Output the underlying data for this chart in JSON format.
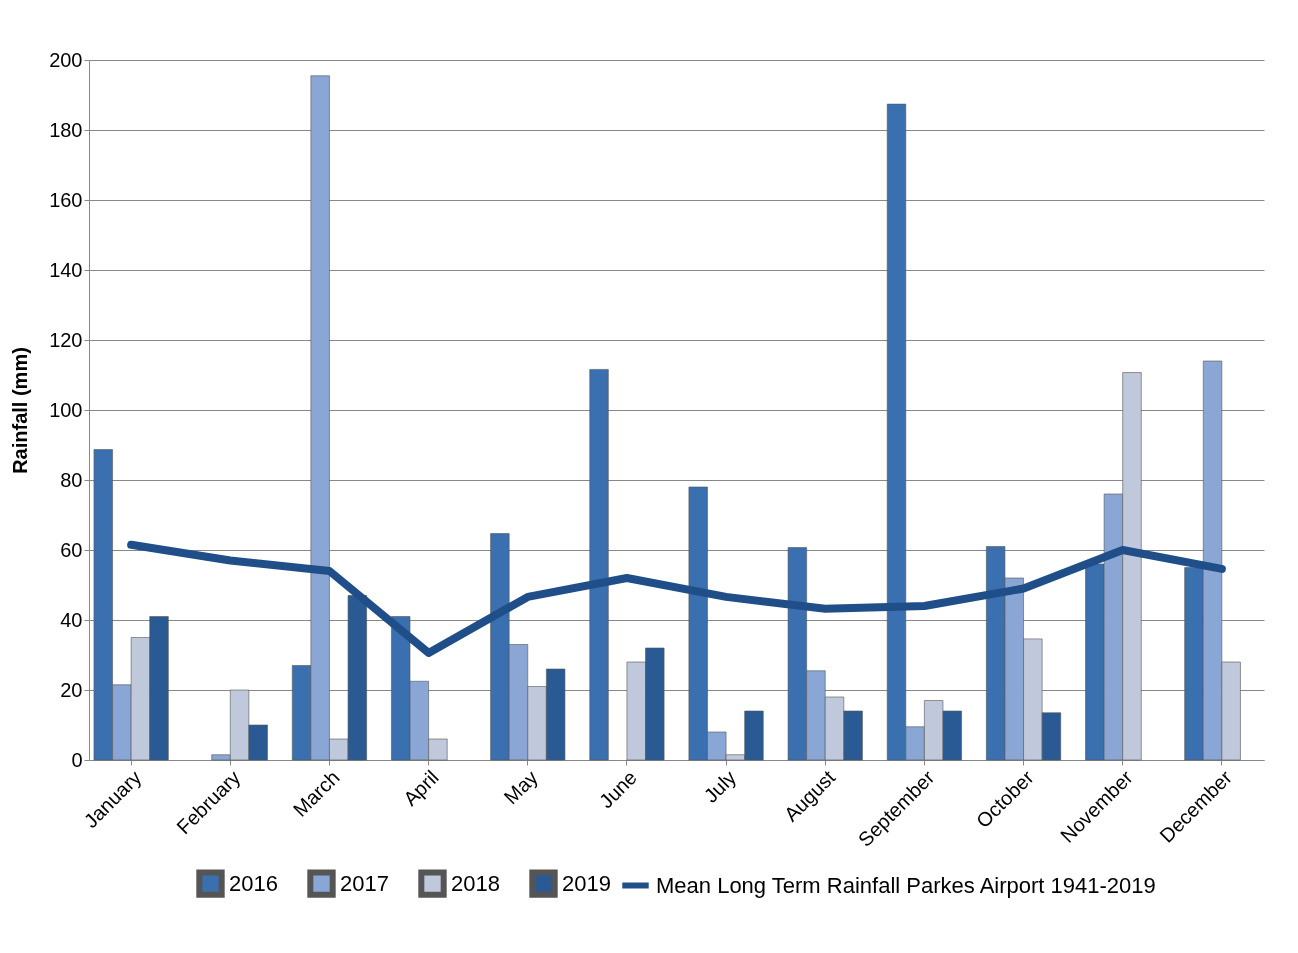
{
  "chart_data": {
    "type": "bar",
    "ylabel": "Rainfall (mm)",
    "categories": [
      "January",
      "February",
      "March",
      "April",
      "May",
      "June",
      "July",
      "August",
      "September",
      "October",
      "November",
      "December"
    ],
    "series": [
      {
        "name": "2016",
        "color": "#3a6fb0",
        "values": [
          88.7,
          null,
          27,
          41,
          64.7,
          111.6,
          78,
          60.7,
          187.4,
          61,
          56,
          55
        ]
      },
      {
        "name": "2017",
        "color": "#8aa6d4",
        "values": [
          21.5,
          1.5,
          195.5,
          22.5,
          33,
          null,
          8,
          25.5,
          9.5,
          52,
          76,
          114
        ]
      },
      {
        "name": "2018",
        "color": "#c0c8dc",
        "values": [
          35,
          20,
          6,
          6,
          21,
          28,
          1.5,
          18,
          17,
          34.6,
          110.7,
          28
        ]
      },
      {
        "name": "2019",
        "color": "#2a5a94",
        "values": [
          41,
          10,
          47,
          null,
          26,
          32,
          14,
          14,
          14,
          13.5,
          null,
          null
        ]
      },
      {
        "name": "Mean Long Term Rainfall Parkes Airport 1941-2019",
        "type": "line",
        "color": "#1f4e89",
        "values": [
          61.5,
          57,
          54,
          30.6,
          46.6,
          52,
          46.6,
          43.2,
          44,
          49,
          60,
          54.6
        ]
      }
    ],
    "ylim": [
      0,
      200
    ],
    "yticks": [
      0,
      20,
      40,
      60,
      80,
      100,
      120,
      140,
      160,
      180,
      200
    ],
    "grid": "y",
    "legend": "bottom"
  }
}
